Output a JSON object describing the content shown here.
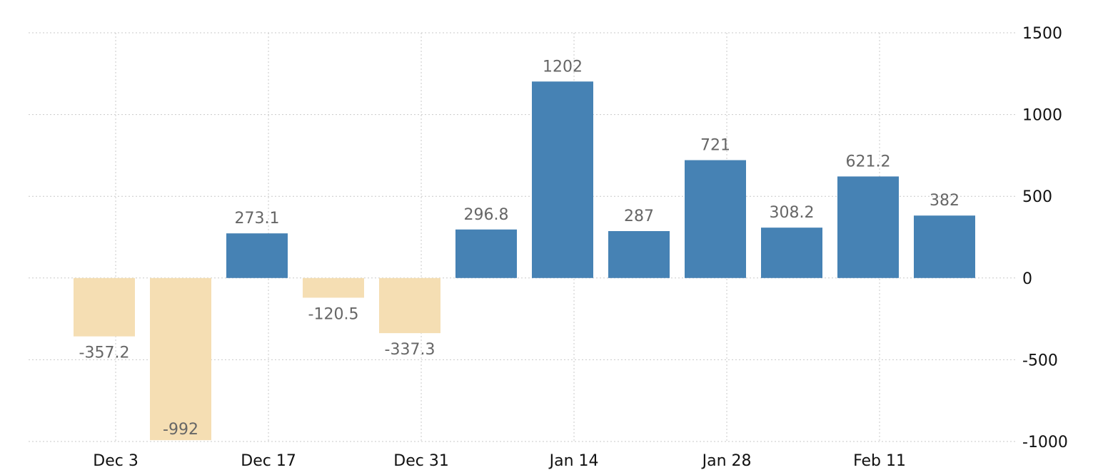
{
  "chart_data": {
    "type": "bar",
    "categories": [
      "",
      "",
      "",
      "",
      "",
      "",
      "",
      "",
      "",
      "",
      "",
      ""
    ],
    "x_tick_labels": [
      "Dec 3",
      "Dec 17",
      "Dec 31",
      "Jan 14",
      "Jan 28",
      "Feb 11"
    ],
    "values": [
      -357.2,
      -992,
      273.1,
      -120.5,
      -337.3,
      296.8,
      1202,
      287,
      721,
      308.2,
      621.2,
      382
    ],
    "data_labels": [
      "-357.2",
      "-992",
      "273.1",
      "-120.5",
      "-337.3",
      "296.8",
      "1202",
      "287",
      "721",
      "308.2",
      "621.2",
      "382"
    ],
    "title": "",
    "xlabel": "",
    "ylabel": "",
    "ylim": [
      -1000,
      1500
    ],
    "y_ticks": [
      1500,
      1000,
      500,
      0,
      -500,
      -1000
    ],
    "y_tick_labels": [
      "1500",
      "1000",
      "500",
      "0",
      "-500",
      "-1000"
    ],
    "y_axis_position": "right",
    "grid": true,
    "legend": "none",
    "colors": {
      "positive": "#4682b4",
      "negative": "#f5deb3",
      "grid": "#c9c9c9",
      "data_label": "#666666",
      "tick_label": "#111111"
    }
  }
}
